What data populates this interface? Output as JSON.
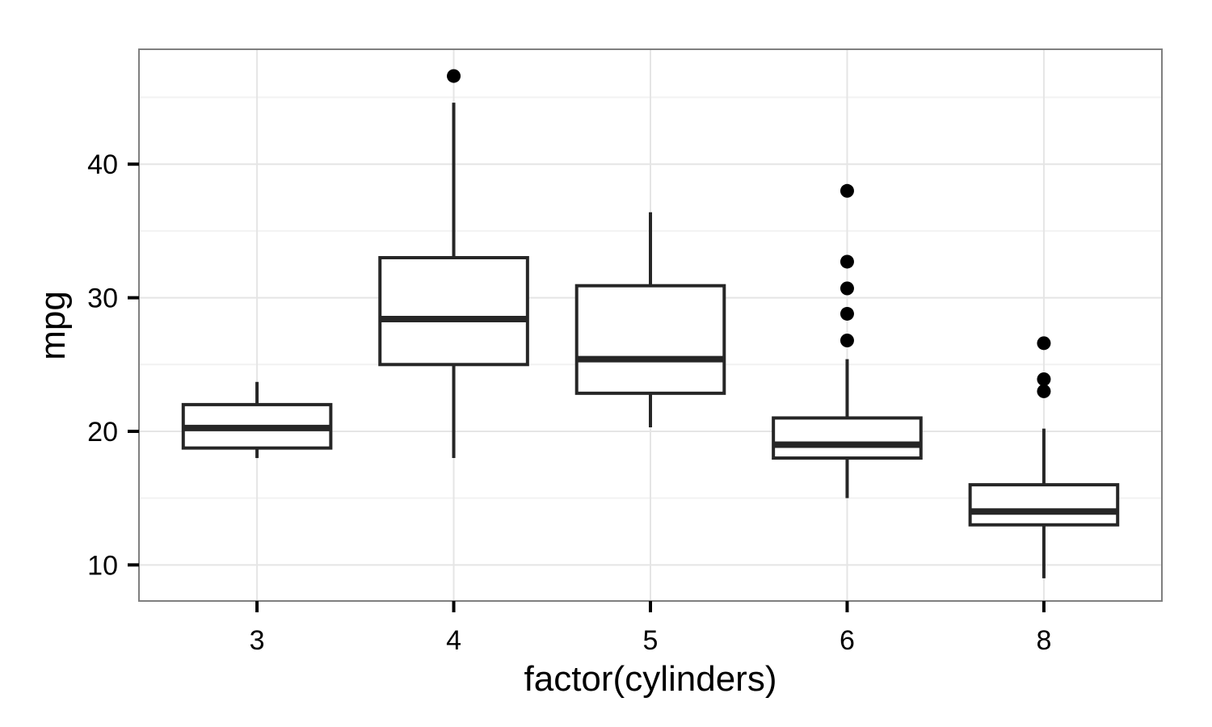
{
  "chart_data": {
    "type": "boxplot",
    "xlabel": "factor(cylinders)",
    "ylabel": "mpg",
    "categories": [
      "3",
      "4",
      "5",
      "6",
      "8"
    ],
    "ylim": [
      7.3,
      48.6
    ],
    "yticks": [
      10,
      20,
      30,
      40
    ],
    "grid": true,
    "boxes": [
      {
        "category": "3",
        "whisker_low": 18.0,
        "q1": 18.75,
        "median": 20.25,
        "q3": 22.0,
        "whisker_high": 23.7,
        "outliers": []
      },
      {
        "category": "4",
        "whisker_low": 18.0,
        "q1": 25.0,
        "median": 28.4,
        "q3": 33.0,
        "whisker_high": 44.6,
        "outliers": [
          46.6
        ]
      },
      {
        "category": "5",
        "whisker_low": 20.3,
        "q1": 22.85,
        "median": 25.4,
        "q3": 30.9,
        "whisker_high": 36.4,
        "outliers": []
      },
      {
        "category": "6",
        "whisker_low": 15.0,
        "q1": 18.0,
        "median": 19.0,
        "q3": 21.0,
        "whisker_high": 25.4,
        "outliers": [
          26.8,
          28.8,
          30.7,
          32.7,
          38.0
        ]
      },
      {
        "category": "8",
        "whisker_low": 9.0,
        "q1": 13.0,
        "median": 14.0,
        "q3": 16.0,
        "whisker_high": 20.2,
        "outliers": [
          23.0,
          23.9,
          26.6
        ]
      }
    ],
    "colors": {
      "panel_background": "#ffffff",
      "panel_border": "#7f7f7f",
      "grid_major": "#e5e5e5",
      "grid_minor": "#f2f2f2",
      "box_stroke": "#262626",
      "point_fill": "#000000"
    }
  }
}
